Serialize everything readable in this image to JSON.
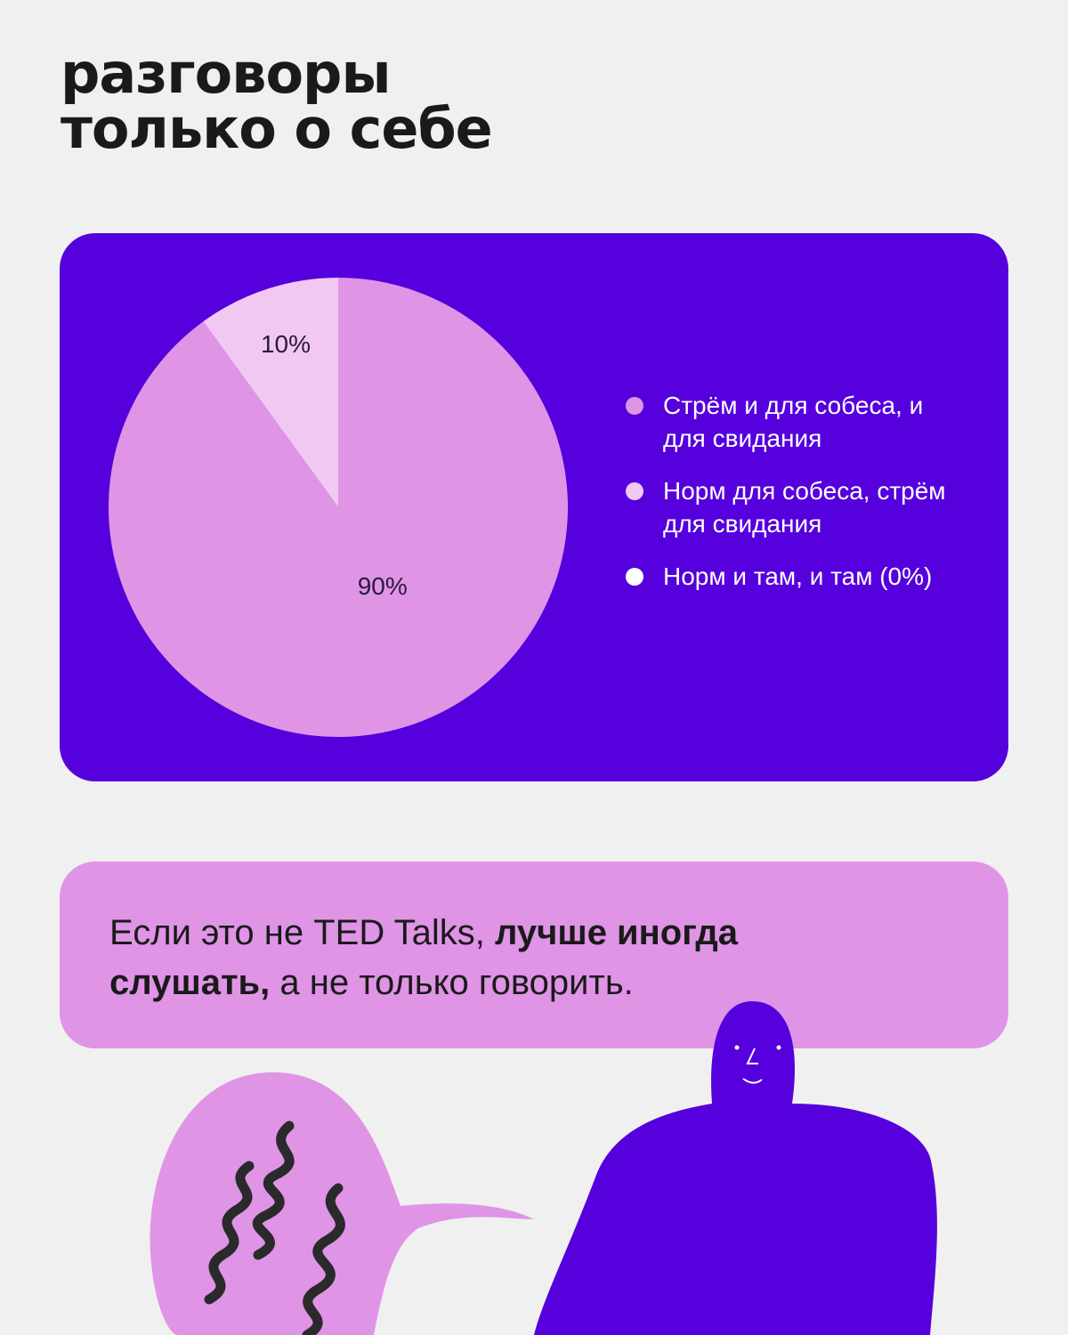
{
  "chart_data": {
    "type": "pie",
    "title": "разговоры только о себе",
    "categories": [
      "Стрём и для собеса, и для свидания",
      "Норм для собеса, стрём для свидания",
      "Норм и там, и там (0%)"
    ],
    "values": [
      90,
      10,
      0
    ],
    "value_labels": [
      "90%",
      "10%",
      null
    ],
    "colors": [
      "#e094e6",
      "#f0c8f2",
      "#ffffff"
    ]
  },
  "note": {
    "parts": [
      "Если это не TED Talks, ",
      "лучше иногда слушать,",
      " а не только говорить."
    ]
  }
}
